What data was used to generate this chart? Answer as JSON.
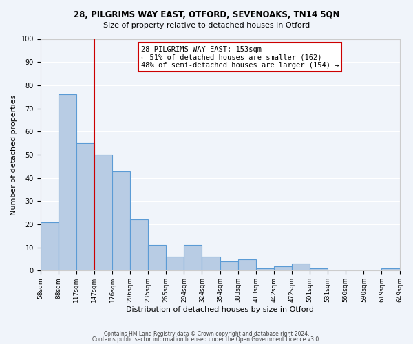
{
  "title1": "28, PILGRIMS WAY EAST, OTFORD, SEVENOAKS, TN14 5QN",
  "title2": "Size of property relative to detached houses in Otford",
  "xlabel": "Distribution of detached houses by size in Otford",
  "ylabel": "Number of detached properties",
  "footer1": "Contains HM Land Registry data © Crown copyright and database right 2024.",
  "footer2": "Contains public sector information licensed under the Open Government Licence v3.0.",
  "bin_labels": [
    "58sqm",
    "88sqm",
    "117sqm",
    "147sqm",
    "176sqm",
    "206sqm",
    "235sqm",
    "265sqm",
    "294sqm",
    "324sqm",
    "354sqm",
    "383sqm",
    "413sqm",
    "442sqm",
    "472sqm",
    "501sqm",
    "531sqm",
    "560sqm",
    "590sqm",
    "619sqm",
    "649sqm"
  ],
  "bar_heights": [
    21,
    76,
    55,
    50,
    43,
    22,
    11,
    6,
    11,
    6,
    4,
    5,
    1,
    2,
    3,
    1,
    0,
    0,
    0,
    1
  ],
  "bar_color": "#b8cce4",
  "bar_edge_color": "#5b9bd5",
  "vline_x": 3,
  "vline_color": "#cc0000",
  "annotation_title": "28 PILGRIMS WAY EAST: 153sqm",
  "annotation_line1": "← 51% of detached houses are smaller (162)",
  "annotation_line2": "48% of semi-detached houses are larger (154) →",
  "annotation_box_color": "#cc0000",
  "ylim": [
    0,
    100
  ],
  "background_color": "#f0f4fa"
}
